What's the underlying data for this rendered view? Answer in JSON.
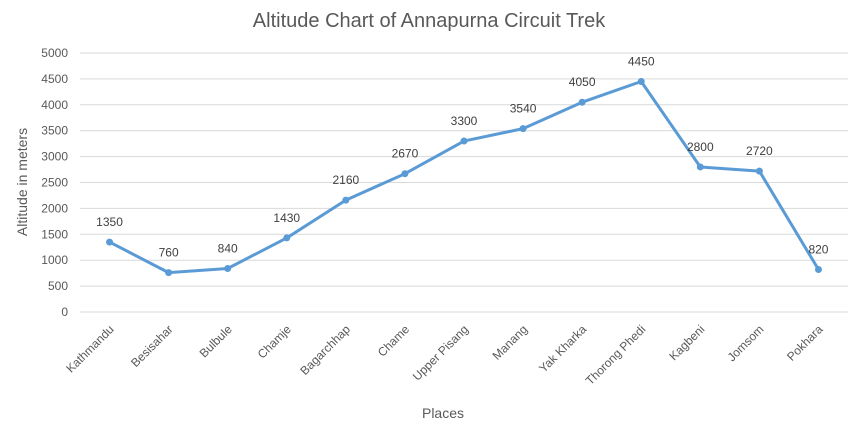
{
  "chart_data": {
    "type": "line",
    "title": "Altitude Chart of Annapurna Circuit Trek",
    "xlabel": "Places",
    "ylabel": "Altitude in meters",
    "categories": [
      "Kathmandu",
      "Besisahar",
      "Bulbule",
      "Chamje",
      "Bagarchhap",
      "Chame",
      "Upper Pisang",
      "Manang",
      "Yak Kharka",
      "Thorong Phedi",
      "Kagbeni",
      "Jomsom",
      "Pokhara"
    ],
    "series": [
      {
        "values": [
          1350,
          760,
          840,
          1430,
          2160,
          2670,
          3300,
          3540,
          4050,
          4450,
          2800,
          2720,
          820
        ],
        "color": "#5b9bd5"
      }
    ],
    "ylim": [
      0,
      5000
    ],
    "yticks": [
      0,
      500,
      1000,
      1500,
      2000,
      2500,
      3000,
      3500,
      4000,
      4500,
      5000
    ],
    "grid": true,
    "legend": "none",
    "data_labels": true
  }
}
